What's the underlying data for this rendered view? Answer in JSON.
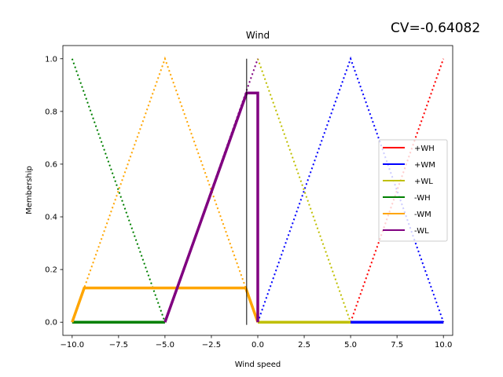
{
  "annotation": "CV=-0.64082",
  "chart_data": {
    "type": "line",
    "title": "Wind",
    "xlabel": "Wind speed",
    "ylabel": "Membership",
    "xlim": [
      -10.5,
      10.5
    ],
    "ylim": [
      -0.05,
      1.05
    ],
    "xticks": [
      -10.0,
      -7.5,
      -5.0,
      -2.5,
      0.0,
      2.5,
      5.0,
      7.5,
      10.0
    ],
    "xtick_labels": [
      "−10.0",
      "−7.5",
      "−5.0",
      "−2.5",
      "0.0",
      "2.5",
      "5.0",
      "7.5",
      "10.0"
    ],
    "yticks": [
      0.0,
      0.2,
      0.4,
      0.6,
      0.8,
      1.0
    ],
    "ytick_labels": [
      "0.0",
      "0.2",
      "0.4",
      "0.6",
      "0.8",
      "1.0"
    ],
    "grid": false,
    "legend_placement": "center-right",
    "crisp_input_line": {
      "x": -0.6,
      "color": "#000000"
    },
    "series": [
      {
        "name": "+WH",
        "color": "#ff0000",
        "membership": {
          "x": [
            5,
            10
          ],
          "y": [
            0,
            1
          ]
        },
        "activation": {
          "x": [
            5,
            10
          ],
          "y": [
            0,
            0
          ]
        }
      },
      {
        "name": "+WM",
        "color": "#0000ff",
        "membership": {
          "x": [
            0,
            5,
            10
          ],
          "y": [
            0,
            1,
            0
          ]
        },
        "activation": {
          "x": [
            5,
            10
          ],
          "y": [
            0,
            0
          ]
        }
      },
      {
        "name": "+WL",
        "color": "#bfbf00",
        "membership": {
          "x": [
            0,
            5
          ],
          "y": [
            1,
            0
          ]
        },
        "activation": {
          "x": [
            0,
            5
          ],
          "y": [
            0,
            0
          ]
        }
      },
      {
        "name": "-WH",
        "color": "#008000",
        "membership": {
          "x": [
            -10,
            -5
          ],
          "y": [
            1,
            0
          ]
        },
        "activation": {
          "x": [
            -10,
            -5
          ],
          "y": [
            0,
            0
          ]
        }
      },
      {
        "name": "-WM",
        "color": "#ffa500",
        "membership": {
          "x": [
            -10,
            -5,
            0
          ],
          "y": [
            0,
            1,
            0
          ]
        },
        "activation": {
          "x": [
            -10,
            -9.35,
            -0.65,
            0
          ],
          "y": [
            0,
            0.13,
            0.13,
            0
          ]
        }
      },
      {
        "name": "-WL",
        "color": "#800080",
        "membership": {
          "x": [
            -5,
            0
          ],
          "y": [
            0,
            1
          ]
        },
        "activation": {
          "x": [
            -5,
            -0.6,
            0,
            0,
            0
          ],
          "y": [
            0,
            0.87,
            0.87,
            0.87,
            0
          ]
        }
      }
    ]
  }
}
